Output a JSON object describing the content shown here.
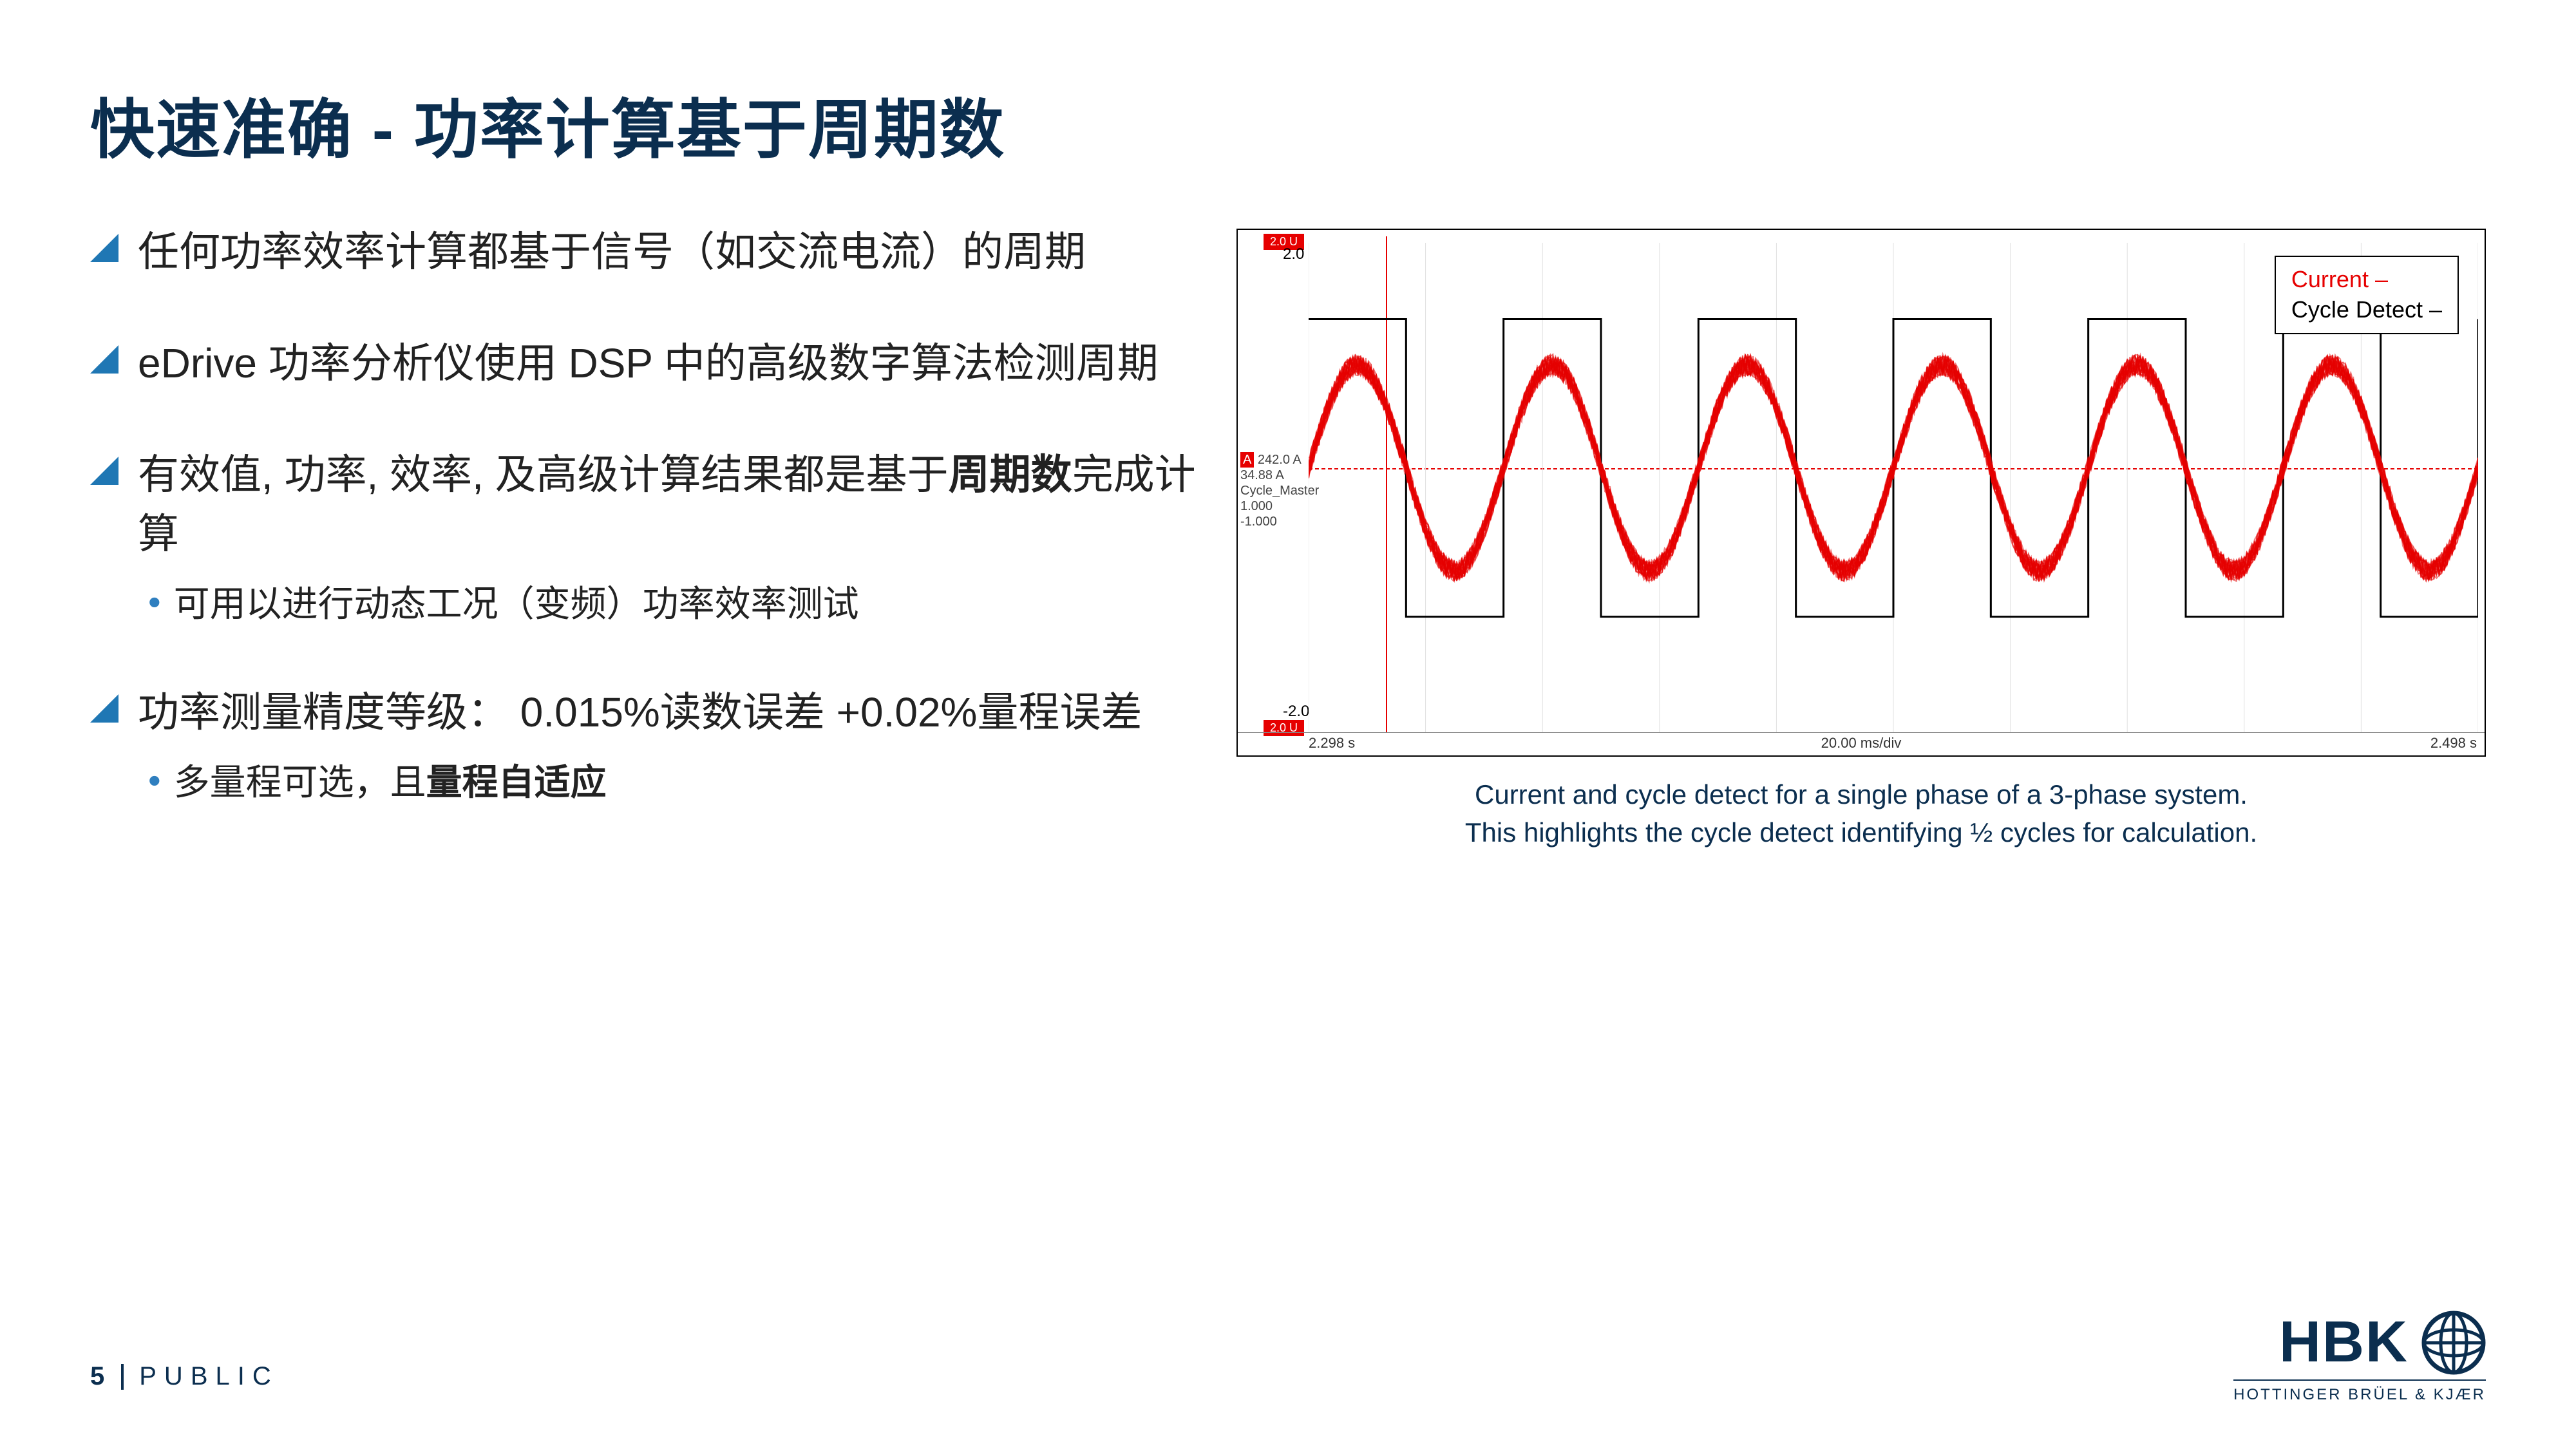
{
  "title": "快速准确 - 功率计算基于周期数",
  "bullets": [
    {
      "text_parts": [
        {
          "t": "任何功率效率计算都基于信号（如交流电流）的周期",
          "bold": false
        }
      ],
      "subs": []
    },
    {
      "text_parts": [
        {
          "t": "eDrive 功率分析仪使用 DSP 中的高级数字算法检测周期",
          "bold": false
        }
      ],
      "subs": []
    },
    {
      "text_parts": [
        {
          "t": "有效值, 功率, 效率, 及高级计算结果都是基于",
          "bold": false
        },
        {
          "t": "周期数",
          "bold": true
        },
        {
          "t": "完成计算",
          "bold": false
        }
      ],
      "subs": [
        {
          "parts": [
            {
              "t": "可用以进行动态工况（变频）功率效率测试",
              "bold": false
            }
          ]
        }
      ]
    },
    {
      "text_parts": [
        {
          "t": "功率测量精度等级：  0.015%读数误差 +0.02%量程误差",
          "bold": false
        }
      ],
      "subs": [
        {
          "parts": [
            {
              "t": "多量程可选，且",
              "bold": false
            },
            {
              "t": "量程自适应",
              "bold": true
            }
          ]
        }
      ]
    }
  ],
  "bullet_triangle_color": "#1f77b4",
  "sub_dot_color": "#2f7fbf",
  "chart": {
    "legend": {
      "current": "Current –",
      "cycle": "Cycle Detect –"
    },
    "y_top": "2.0",
    "y_bottom": "-2.0",
    "tag_top": "2.0 U",
    "tag_bot": "2.0 U",
    "left_labels": [
      "242.0  A",
      "34.88  A",
      "Cycle_Master",
      "1.000",
      "-1.000"
    ],
    "x_left": "2.298 s",
    "x_mid": "20.00 ms/div",
    "x_right": "2.498 s",
    "sine_color": "#e60000",
    "square_color": "#000000",
    "grid_color": "#e0e0e0",
    "cycles": 6,
    "amplitude": 0.75,
    "square_amp": 0.95
  },
  "caption_line1": "Current and cycle detect for a single phase of a 3-phase system.",
  "caption_line2": "This highlights the cycle detect identifying ½ cycles for calculation.",
  "footer": {
    "page": "5",
    "label": "PUBLIC"
  },
  "logo": {
    "main": "HBK",
    "sub": "HOTTINGER BRÜEL & KJÆR"
  }
}
